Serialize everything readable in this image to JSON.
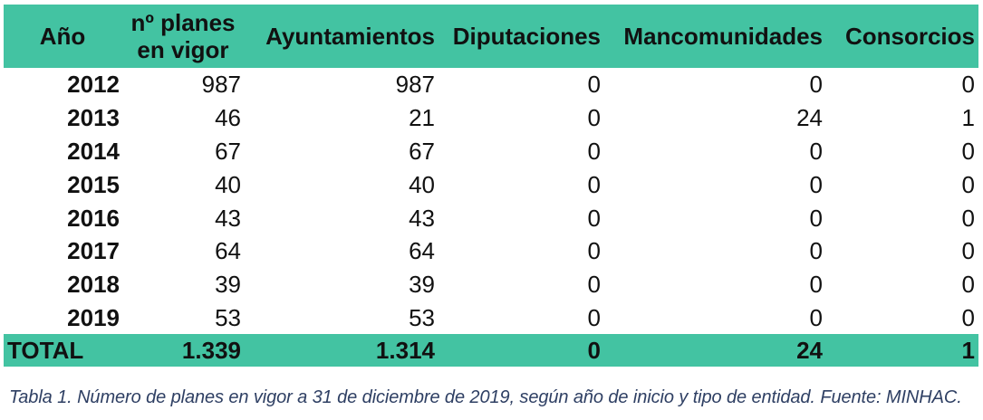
{
  "table": {
    "headers": {
      "year": "Año",
      "planes_line1": "nº planes",
      "planes_line2": "en vigor",
      "ayuntamientos": "Ayuntamientos",
      "diputaciones": "Diputaciones",
      "mancomunidades": "Mancomunidades",
      "consorcios": "Consorcios"
    },
    "rows": [
      {
        "year": "2012",
        "planes": "987",
        "ayuntamientos": "987",
        "diputaciones": "0",
        "mancomunidades": "0",
        "consorcios": "0"
      },
      {
        "year": "2013",
        "planes": "46",
        "ayuntamientos": "21",
        "diputaciones": "0",
        "mancomunidades": "24",
        "consorcios": "1"
      },
      {
        "year": "2014",
        "planes": "67",
        "ayuntamientos": "67",
        "diputaciones": "0",
        "mancomunidades": "0",
        "consorcios": "0"
      },
      {
        "year": "2015",
        "planes": "40",
        "ayuntamientos": "40",
        "diputaciones": "0",
        "mancomunidades": "0",
        "consorcios": "0"
      },
      {
        "year": "2016",
        "planes": "43",
        "ayuntamientos": "43",
        "diputaciones": "0",
        "mancomunidades": "0",
        "consorcios": "0"
      },
      {
        "year": "2017",
        "planes": "64",
        "ayuntamientos": "64",
        "diputaciones": "0",
        "mancomunidades": "0",
        "consorcios": "0"
      },
      {
        "year": "2018",
        "planes": "39",
        "ayuntamientos": "39",
        "diputaciones": "0",
        "mancomunidades": "0",
        "consorcios": "0"
      },
      {
        "year": "2019",
        "planes": "53",
        "ayuntamientos": "53",
        "diputaciones": "0",
        "mancomunidades": "0",
        "consorcios": "0"
      }
    ],
    "total": {
      "label": "TOTAL",
      "planes": "1.339",
      "ayuntamientos": "1.314",
      "diputaciones": "0",
      "mancomunidades": "24",
      "consorcios": "1"
    }
  },
  "caption": "Tabla 1. Número de planes en vigor a 31 de diciembre de 2019, según año de inicio y tipo de entidad. Fuente: MINHAC.",
  "colors": {
    "header_bg": "#43c3a2",
    "caption_text": "#2e3f63"
  }
}
